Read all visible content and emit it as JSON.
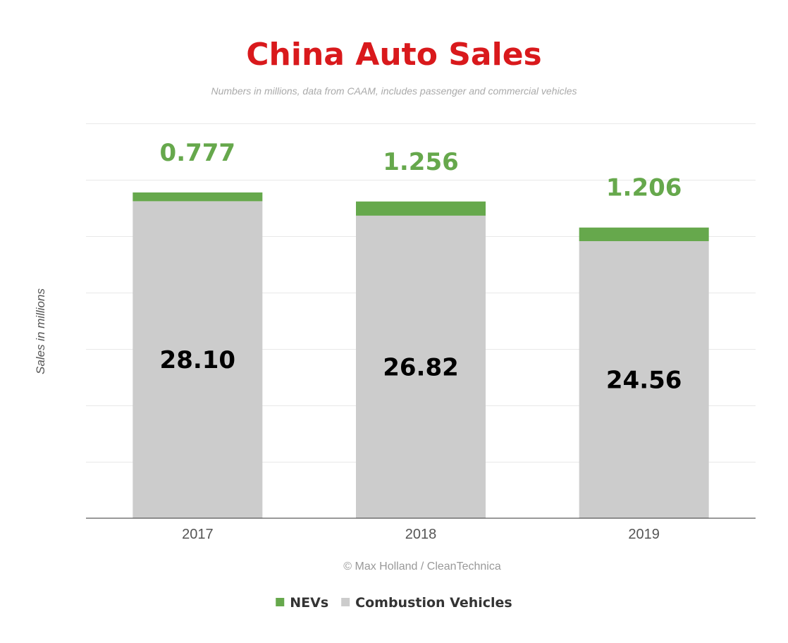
{
  "chart_data": {
    "type": "bar",
    "stacked": true,
    "title": "China Auto Sales",
    "subtitle": "Numbers in millions, data from CAAM, includes passenger and commercial vehicles",
    "xlabel": "",
    "ylabel": "Sales in millions",
    "credit": "© Max Holland / CleanTechnica",
    "categories": [
      "2017",
      "2018",
      "2019"
    ],
    "series": [
      {
        "name": "Combustion Vehicles",
        "values": [
          28.1,
          26.82,
          24.56
        ],
        "labels": [
          "28.10",
          "26.82",
          "24.56"
        ],
        "color": "#cccccc",
        "label_color": "#000000"
      },
      {
        "name": "NEVs",
        "values": [
          0.777,
          1.256,
          1.206
        ],
        "labels": [
          "0.777",
          "1.256",
          "1.206"
        ],
        "color": "#66a84c",
        "label_color": "#66a84c"
      }
    ],
    "ylim": [
      0,
      35
    ],
    "grid": true,
    "legend_position": "bottom",
    "colors": {
      "title": "#d9191c",
      "subtitle": "#aaaaaa",
      "axis_text": "#555555",
      "credit": "#999999",
      "gridline": "#e8e8e8",
      "axis_line": "#333333"
    }
  }
}
